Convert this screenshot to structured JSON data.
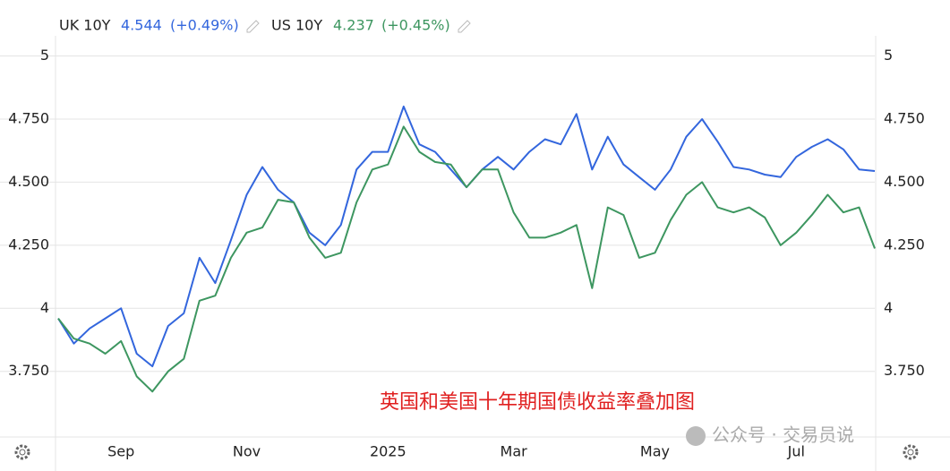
{
  "chart_data": {
    "type": "line",
    "annotation": "英国和美国十年期国债收益率叠加图",
    "watermark": "公众号 · 交易员说",
    "categories": [
      null,
      null,
      null,
      null,
      "Sep",
      null,
      null,
      null,
      null,
      null,
      null,
      null,
      "Nov",
      null,
      null,
      null,
      null,
      null,
      null,
      null,
      null,
      "2025",
      null,
      null,
      null,
      null,
      null,
      null,
      null,
      "Mar",
      null,
      null,
      null,
      null,
      null,
      null,
      null,
      null,
      "May",
      null,
      null,
      null,
      null,
      null,
      null,
      null,
      null,
      "Jul",
      null,
      null,
      null,
      null,
      null
    ],
    "series": [
      {
        "name": "UK 10Y",
        "last": "4.544",
        "change": "(+0.49%)",
        "color": "#3366dd",
        "values": [
          3.96,
          3.86,
          3.92,
          3.96,
          4.0,
          3.82,
          3.77,
          3.93,
          3.98,
          4.2,
          4.1,
          4.27,
          4.45,
          4.56,
          4.47,
          4.42,
          4.3,
          4.25,
          4.33,
          4.55,
          4.62,
          4.62,
          4.8,
          4.65,
          4.62,
          4.55,
          4.48,
          4.55,
          4.6,
          4.55,
          4.62,
          4.67,
          4.65,
          4.77,
          4.55,
          4.68,
          4.57,
          4.52,
          4.47,
          4.55,
          4.68,
          4.75,
          4.66,
          4.56,
          4.55,
          4.53,
          4.52,
          4.6,
          4.64,
          4.67,
          4.63,
          4.55,
          4.544
        ]
      },
      {
        "name": "US 10Y",
        "last": "4.237",
        "change": "(+0.45%)",
        "color": "#3d9660",
        "values": [
          3.96,
          3.88,
          3.86,
          3.82,
          3.87,
          3.73,
          3.67,
          3.75,
          3.8,
          4.03,
          4.05,
          4.2,
          4.3,
          4.32,
          4.43,
          4.42,
          4.28,
          4.2,
          4.22,
          4.42,
          4.55,
          4.57,
          4.72,
          4.62,
          4.58,
          4.57,
          4.48,
          4.55,
          4.55,
          4.38,
          4.28,
          4.28,
          4.3,
          4.33,
          4.08,
          4.4,
          4.37,
          4.2,
          4.22,
          4.35,
          4.45,
          4.5,
          4.4,
          4.38,
          4.4,
          4.36,
          4.25,
          4.3,
          4.37,
          4.45,
          4.38,
          4.4,
          4.237
        ]
      }
    ],
    "ylim": [
      3.49,
      5.08
    ],
    "yticks": [
      {
        "value": 3.75,
        "label": "3.750"
      },
      4,
      {
        "value": 4.25,
        "label": "4.250"
      },
      {
        "value": 4.5,
        "label": "4.500"
      },
      {
        "value": 4.75,
        "label": "4.750"
      },
      5
    ],
    "grid": true
  }
}
